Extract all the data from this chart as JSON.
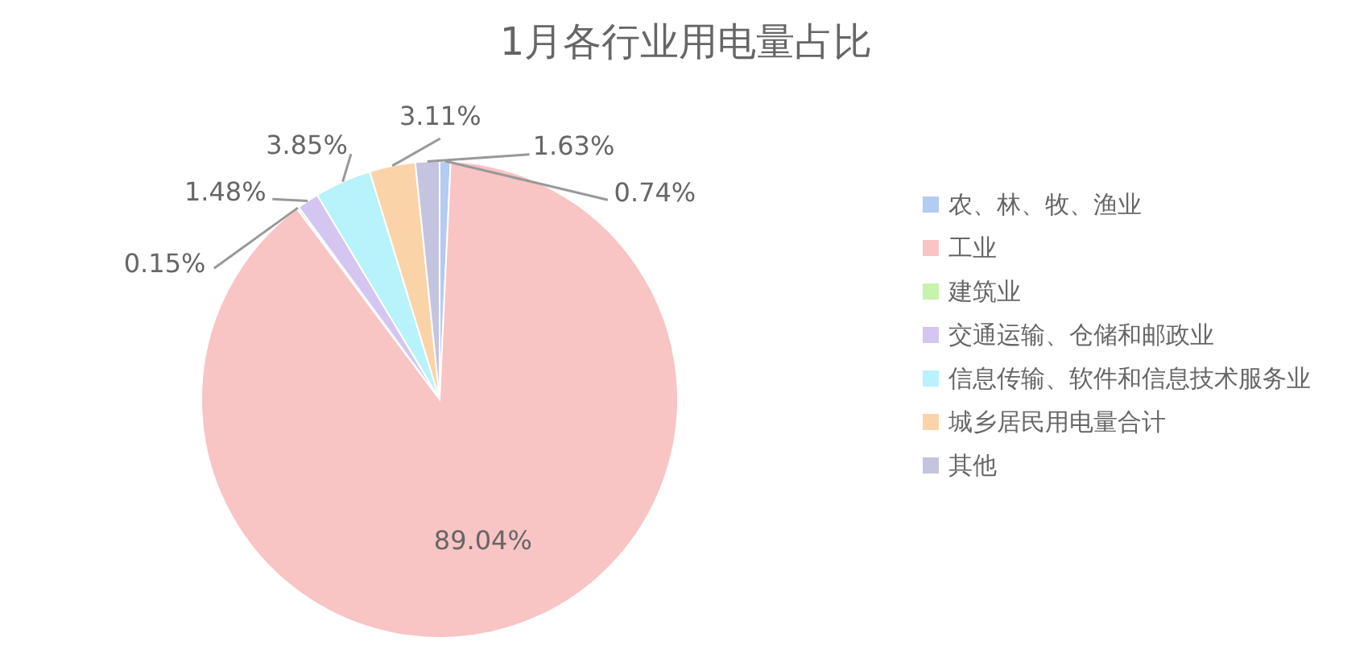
{
  "chart_data": {
    "type": "pie",
    "title": "1月各行业用电量占比",
    "categories": [
      "农、林、牧、渔业",
      "工业",
      "建筑业",
      "交通运输、仓储和邮政业",
      "信息传输、软件和信息技术服务业",
      "城乡居民用电量合计",
      "其他"
    ],
    "values": [
      0.74,
      89.04,
      0.15,
      1.48,
      3.85,
      3.11,
      1.63
    ],
    "value_labels": [
      "0.74%",
      "89.04%",
      "0.15%",
      "1.48%",
      "3.85%",
      "3.11%",
      "1.63%"
    ],
    "colors": [
      "#b4cbf2",
      "#f8c4c4",
      "#c9f2ae",
      "#d4c6f0",
      "#b8f2fa",
      "#fad4a8",
      "#c4c4e0"
    ],
    "legend": "right"
  }
}
